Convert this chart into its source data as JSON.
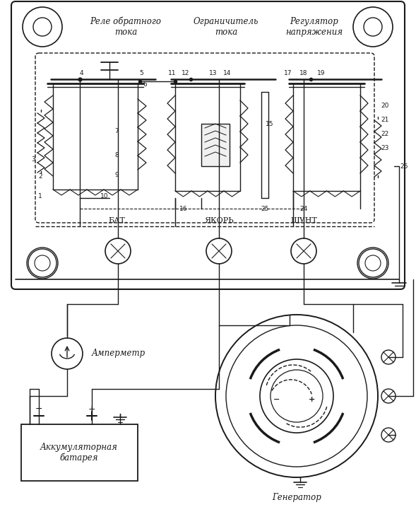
{
  "bg_color": "#ffffff",
  "lc": "#1a1a1a",
  "title1": "Реле обратного\nтока",
  "title2": "Ограничитель\nтока",
  "title3": "Регулятор\nнапряжения",
  "label_bat": "БАТ.",
  "label_yakor": "ЯКОРЬ",
  "label_shunt": "ШУНТ",
  "label_amp": "Амперметр",
  "label_batt2": "Аккумуляторная\nбатарея",
  "label_gen": "Генератор",
  "figsize": [
    5.89,
    7.24
  ],
  "dpi": 100
}
